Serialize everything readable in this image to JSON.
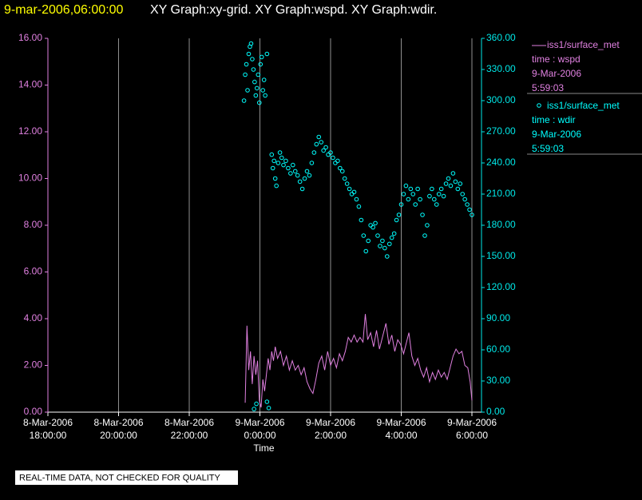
{
  "header": {
    "stamp": "9-mar-2006,06:00:00",
    "graphs": "XY Graph:xy-grid.  XY Graph:wspd.  XY Graph:wdir."
  },
  "footer": {
    "note": "REAL-TIME DATA, NOT CHECKED FOR QUALITY"
  },
  "chart_data": {
    "type": "xy",
    "xlabel": "Time",
    "grid": true,
    "xlim": [
      "2006-03-08T18:00",
      "2006-03-09T06:00"
    ],
    "xticks": [
      {
        "value": "2006-03-08T18:00",
        "label": [
          "8-Mar-2006",
          "18:00:00"
        ]
      },
      {
        "value": "2006-03-08T20:00",
        "label": [
          "8-Mar-2006",
          "20:00:00"
        ]
      },
      {
        "value": "2006-03-08T22:00",
        "label": [
          "8-Mar-2006",
          "22:00:00"
        ]
      },
      {
        "value": "2006-03-09T00:00",
        "label": [
          "9-Mar-2006",
          "0:00:00"
        ]
      },
      {
        "value": "2006-03-09T02:00",
        "label": [
          "9-Mar-2006",
          "2:00:00"
        ]
      },
      {
        "value": "2006-03-09T04:00",
        "label": [
          "9-Mar-2006",
          "4:00:00"
        ]
      },
      {
        "value": "2006-03-09T06:00",
        "label": [
          "9-Mar-2006",
          "6:00:00"
        ]
      }
    ],
    "ylim": [
      0,
      16
    ],
    "yticks": [
      {
        "value": 0,
        "label": "0.00"
      },
      {
        "value": 2,
        "label": "2.00"
      },
      {
        "value": 4,
        "label": "4.00"
      },
      {
        "value": 6,
        "label": "6.00"
      },
      {
        "value": 8,
        "label": "8.00"
      },
      {
        "value": 10,
        "label": "10.00"
      },
      {
        "value": 12,
        "label": "12.00"
      },
      {
        "value": 14,
        "label": "14.00"
      },
      {
        "value": 16,
        "label": "16.00"
      }
    ],
    "ycolor": "#e080e0",
    "y2lim": [
      0,
      360
    ],
    "y2ticks": [
      {
        "value": 0,
        "label": "0.00"
      },
      {
        "value": 30,
        "label": "30.00"
      },
      {
        "value": 60,
        "label": "60.00"
      },
      {
        "value": 90,
        "label": "90.00"
      },
      {
        "value": 120,
        "label": "120.00"
      },
      {
        "value": 150,
        "label": "150.00"
      },
      {
        "value": 180,
        "label": "180.00"
      },
      {
        "value": 210,
        "label": "210.00"
      },
      {
        "value": 240,
        "label": "240.00"
      },
      {
        "value": 270,
        "label": "270.00"
      },
      {
        "value": 300,
        "label": "300.00"
      },
      {
        "value": 330,
        "label": "330.00"
      },
      {
        "value": 360,
        "label": "360.00"
      }
    ],
    "y2color": "#00e8e8",
    "series": [
      {
        "name": "iss1/surface_met",
        "legend_var": "time : wspd",
        "legend_date": "9-Mar-2006",
        "legend_time": "5:59:03",
        "type": "line",
        "axis": "y",
        "color": "#e080e0",
        "x": [
          "2006-03-08T23:35",
          "2006-03-08T23:38",
          "2006-03-08T23:41",
          "2006-03-08T23:44",
          "2006-03-08T23:47",
          "2006-03-08T23:50",
          "2006-03-08T23:53",
          "2006-03-08T23:56",
          "2006-03-08T23:59",
          "2006-03-09T00:02",
          "2006-03-09T00:05",
          "2006-03-09T00:08",
          "2006-03-09T00:11",
          "2006-03-09T00:14",
          "2006-03-09T00:17",
          "2006-03-09T00:20",
          "2006-03-09T00:23",
          "2006-03-09T00:26",
          "2006-03-09T00:30",
          "2006-03-09T00:35",
          "2006-03-09T00:40",
          "2006-03-09T00:45",
          "2006-03-09T00:50",
          "2006-03-09T00:55",
          "2006-03-09T01:00",
          "2006-03-09T01:05",
          "2006-03-09T01:10",
          "2006-03-09T01:15",
          "2006-03-09T01:20",
          "2006-03-09T01:25",
          "2006-03-09T01:30",
          "2006-03-09T01:35",
          "2006-03-09T01:40",
          "2006-03-09T01:45",
          "2006-03-09T01:50",
          "2006-03-09T01:55",
          "2006-03-09T02:00",
          "2006-03-09T02:05",
          "2006-03-09T02:10",
          "2006-03-09T02:15",
          "2006-03-09T02:20",
          "2006-03-09T02:25",
          "2006-03-09T02:30",
          "2006-03-09T02:35",
          "2006-03-09T02:40",
          "2006-03-09T02:45",
          "2006-03-09T02:50",
          "2006-03-09T02:55",
          "2006-03-09T02:59",
          "2006-03-09T03:03",
          "2006-03-09T03:08",
          "2006-03-09T03:13",
          "2006-03-09T03:18",
          "2006-03-09T03:23",
          "2006-03-09T03:28",
          "2006-03-09T03:34",
          "2006-03-09T03:39",
          "2006-03-09T03:44",
          "2006-03-09T03:49",
          "2006-03-09T03:54",
          "2006-03-09T03:59",
          "2006-03-09T04:04",
          "2006-03-09T04:09",
          "2006-03-09T04:13",
          "2006-03-09T04:18",
          "2006-03-09T04:23",
          "2006-03-09T04:28",
          "2006-03-09T04:33",
          "2006-03-09T04:38",
          "2006-03-09T04:43",
          "2006-03-09T04:48",
          "2006-03-09T04:53",
          "2006-03-09T04:58",
          "2006-03-09T05:03",
          "2006-03-09T05:08",
          "2006-03-09T05:13",
          "2006-03-09T05:18",
          "2006-03-09T05:23",
          "2006-03-09T05:28",
          "2006-03-09T05:33",
          "2006-03-09T05:38",
          "2006-03-09T05:43",
          "2006-03-09T05:48",
          "2006-03-09T05:53",
          "2006-03-09T05:57",
          "2006-03-09T06:00"
        ],
        "values": [
          0.4,
          3.7,
          1.8,
          2.6,
          1.2,
          2.4,
          1.6,
          2.2,
          0.5,
          0.2,
          1.4,
          0.9,
          1.6,
          2.3,
          1.8,
          2.6,
          2.2,
          2.8,
          2.3,
          2.6,
          2.0,
          2.4,
          1.8,
          2.2,
          1.8,
          2.0,
          1.6,
          1.9,
          1.3,
          1.0,
          0.8,
          1.4,
          2.1,
          2.4,
          1.8,
          2.6,
          2.0,
          2.3,
          1.9,
          2.5,
          2.2,
          2.6,
          3.2,
          3.0,
          3.3,
          3.0,
          3.2,
          3.0,
          4.2,
          3.1,
          3.4,
          2.8,
          3.5,
          2.7,
          3.2,
          3.8,
          2.9,
          3.3,
          2.6,
          3.1,
          2.9,
          2.5,
          3.0,
          3.4,
          2.4,
          2.0,
          2.3,
          1.8,
          1.5,
          1.9,
          1.3,
          1.7,
          1.4,
          1.8,
          1.5,
          1.7,
          1.4,
          1.9,
          2.4,
          2.7,
          2.5,
          2.6,
          2.0,
          1.9,
          1.3,
          0.5
        ]
      },
      {
        "name": "iss1/surface_met",
        "legend_var": "time : wdir",
        "legend_date": "9-Mar-2006",
        "legend_time": "5:59:03",
        "type": "scatter",
        "axis": "y2",
        "color": "#00ffff",
        "x": [
          "2006-03-08T23:33",
          "2006-03-08T23:35",
          "2006-03-08T23:37",
          "2006-03-08T23:39",
          "2006-03-08T23:41",
          "2006-03-08T23:43",
          "2006-03-08T23:45",
          "2006-03-08T23:47",
          "2006-03-08T23:49",
          "2006-03-08T23:51",
          "2006-03-08T23:53",
          "2006-03-08T23:55",
          "2006-03-08T23:57",
          "2006-03-08T23:59",
          "2006-03-09T00:01",
          "2006-03-09T00:03",
          "2006-03-09T00:05",
          "2006-03-09T00:07",
          "2006-03-09T00:09",
          "2006-03-09T00:12",
          "2006-03-08T23:50",
          "2006-03-08T23:54",
          "2006-03-09T00:12",
          "2006-03-09T00:15",
          "2006-03-09T00:20",
          "2006-03-09T00:22",
          "2006-03-09T00:24",
          "2006-03-09T00:26",
          "2006-03-09T00:28",
          "2006-03-09T00:31",
          "2006-03-09T00:34",
          "2006-03-09T00:37",
          "2006-03-09T00:40",
          "2006-03-09T00:44",
          "2006-03-09T00:48",
          "2006-03-09T00:52",
          "2006-03-09T00:56",
          "2006-03-09T01:00",
          "2006-03-09T01:04",
          "2006-03-09T01:08",
          "2006-03-09T01:12",
          "2006-03-09T01:16",
          "2006-03-09T01:20",
          "2006-03-09T01:24",
          "2006-03-09T01:28",
          "2006-03-09T01:32",
          "2006-03-09T01:36",
          "2006-03-09T01:40",
          "2006-03-09T01:44",
          "2006-03-09T01:48",
          "2006-03-09T01:52",
          "2006-03-09T01:56",
          "2006-03-09T02:00",
          "2006-03-09T02:04",
          "2006-03-09T02:08",
          "2006-03-09T02:12",
          "2006-03-09T02:16",
          "2006-03-09T02:20",
          "2006-03-09T02:24",
          "2006-03-09T02:28",
          "2006-03-09T02:32",
          "2006-03-09T02:36",
          "2006-03-09T02:40",
          "2006-03-09T02:44",
          "2006-03-09T02:48",
          "2006-03-09T02:52",
          "2006-03-09T02:56",
          "2006-03-09T03:00",
          "2006-03-09T03:04",
          "2006-03-09T03:08",
          "2006-03-09T03:12",
          "2006-03-09T03:16",
          "2006-03-09T03:20",
          "2006-03-09T03:24",
          "2006-03-09T03:28",
          "2006-03-09T03:32",
          "2006-03-09T03:36",
          "2006-03-09T03:40",
          "2006-03-09T03:44",
          "2006-03-09T03:48",
          "2006-03-09T03:52",
          "2006-03-09T03:56",
          "2006-03-09T04:00",
          "2006-03-09T04:04",
          "2006-03-09T04:08",
          "2006-03-09T04:12",
          "2006-03-09T04:16",
          "2006-03-09T04:20",
          "2006-03-09T04:24",
          "2006-03-09T04:28",
          "2006-03-09T04:32",
          "2006-03-09T04:36",
          "2006-03-09T04:40",
          "2006-03-09T04:44",
          "2006-03-09T04:48",
          "2006-03-09T04:52",
          "2006-03-09T04:56",
          "2006-03-09T05:00",
          "2006-03-09T05:04",
          "2006-03-09T05:08",
          "2006-03-09T05:12",
          "2006-03-09T05:16",
          "2006-03-09T05:20",
          "2006-03-09T05:24",
          "2006-03-09T05:28",
          "2006-03-09T05:32",
          "2006-03-09T05:36",
          "2006-03-09T05:40",
          "2006-03-09T05:44",
          "2006-03-09T05:48",
          "2006-03-09T05:52",
          "2006-03-09T05:56",
          "2006-03-09T06:00"
        ],
        "values": [
          300,
          325,
          335,
          310,
          345,
          352,
          355,
          340,
          330,
          318,
          305,
          312,
          325,
          298,
          335,
          342,
          310,
          320,
          305,
          345,
          3,
          8,
          10,
          4,
          248,
          235,
          242,
          225,
          218,
          240,
          250,
          245,
          238,
          242,
          235,
          230,
          238,
          232,
          228,
          222,
          215,
          225,
          232,
          228,
          240,
          250,
          258,
          265,
          260,
          252,
          255,
          248,
          250,
          245,
          240,
          242,
          235,
          232,
          225,
          220,
          215,
          210,
          212,
          205,
          198,
          185,
          170,
          155,
          165,
          180,
          178,
          182,
          170,
          160,
          165,
          158,
          150,
          162,
          168,
          172,
          185,
          190,
          200,
          210,
          218,
          205,
          215,
          210,
          200,
          215,
          205,
          190,
          170,
          180,
          208,
          215,
          205,
          200,
          210,
          215,
          208,
          220,
          225,
          218,
          230,
          222,
          215,
          220,
          210,
          205,
          200,
          195,
          190
        ]
      }
    ]
  }
}
